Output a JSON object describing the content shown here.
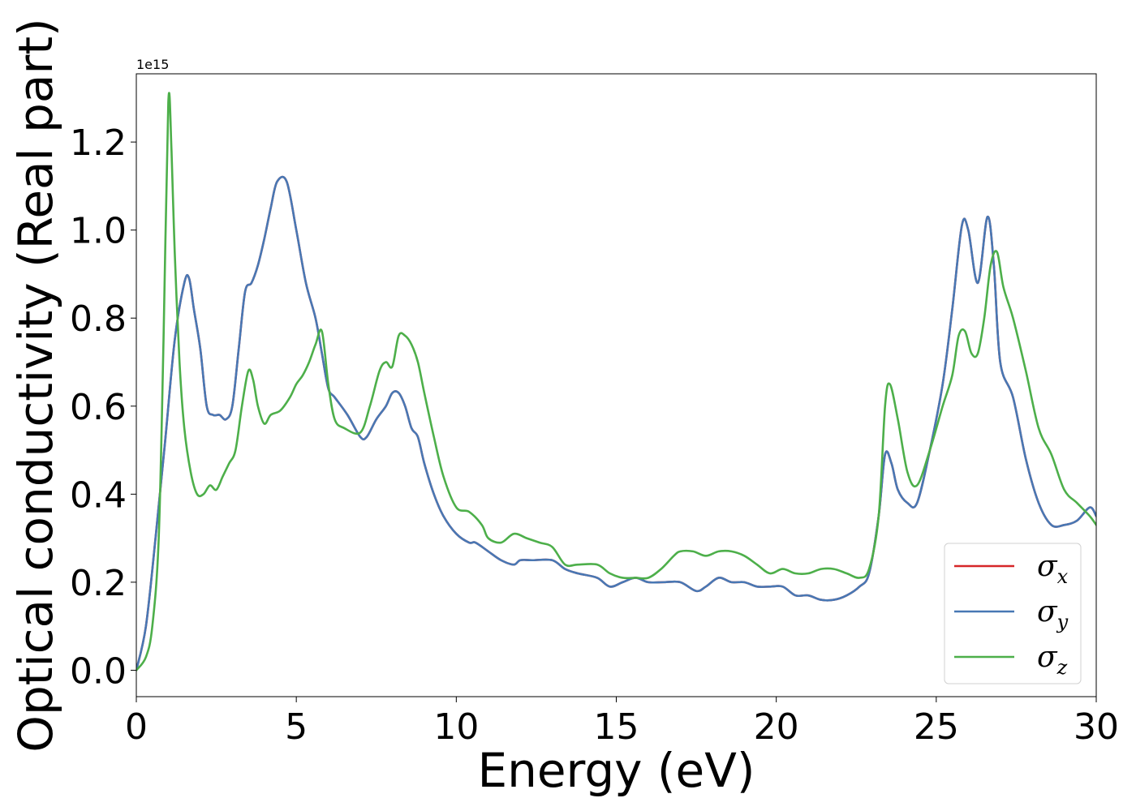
{
  "chart_data": {
    "type": "line",
    "xlabel": "Energy (eV)",
    "ylabel": "Optical conductivity (Real part)",
    "y_offset_text": "1e15",
    "xlim": [
      0,
      30
    ],
    "ylim": [
      -0.06,
      1.355
    ],
    "xticks": [
      0,
      5,
      10,
      15,
      20,
      25,
      30
    ],
    "xtick_labels": [
      "0",
      "5",
      "10",
      "15",
      "20",
      "25",
      "30"
    ],
    "yticks": [
      0.0,
      0.2,
      0.4,
      0.6,
      0.8,
      1.0,
      1.2
    ],
    "ytick_labels": [
      "0.0",
      "0.2",
      "0.4",
      "0.6",
      "0.8",
      "1.0",
      "1.2"
    ],
    "grid": false,
    "legend_position": "bottom-right",
    "series": [
      {
        "name": "σx",
        "symbol": "σ",
        "subscript": "x",
        "color": "#d62728",
        "x": [
          0,
          0.3,
          0.6,
          0.9,
          1.2,
          1.5,
          1.65,
          1.8,
          2.0,
          2.2,
          2.4,
          2.6,
          2.8,
          3.0,
          3.2,
          3.4,
          3.6,
          3.8,
          4.0,
          4.2,
          4.4,
          4.7,
          5.0,
          5.3,
          5.6,
          5.8,
          6.0,
          6.2,
          6.6,
          7.0,
          7.2,
          7.5,
          7.8,
          8.0,
          8.2,
          8.4,
          8.6,
          8.8,
          9.0,
          9.3,
          9.6,
          10.0,
          10.4,
          10.6,
          11.0,
          11.4,
          11.8,
          12.0,
          12.4,
          13.0,
          13.4,
          13.8,
          14.4,
          14.8,
          15.2,
          15.6,
          16.0,
          16.5,
          17.0,
          17.5,
          17.8,
          18.2,
          18.6,
          19.0,
          19.4,
          19.8,
          20.2,
          20.6,
          21.0,
          21.4,
          21.8,
          22.2,
          22.6,
          22.9,
          23.2,
          23.4,
          23.6,
          23.8,
          24.1,
          24.4,
          24.8,
          25.2,
          25.5,
          25.8,
          26.0,
          26.3,
          26.6,
          26.8,
          27.0,
          27.4,
          27.8,
          28.2,
          28.6,
          29.0,
          29.4,
          29.8,
          30.0
        ],
        "y": [
          0.0,
          0.1,
          0.3,
          0.52,
          0.75,
          0.88,
          0.89,
          0.82,
          0.73,
          0.6,
          0.58,
          0.58,
          0.57,
          0.6,
          0.73,
          0.86,
          0.88,
          0.92,
          0.98,
          1.05,
          1.11,
          1.11,
          1.0,
          0.88,
          0.8,
          0.72,
          0.64,
          0.62,
          0.58,
          0.53,
          0.53,
          0.57,
          0.6,
          0.63,
          0.63,
          0.6,
          0.55,
          0.53,
          0.47,
          0.4,
          0.35,
          0.31,
          0.29,
          0.29,
          0.27,
          0.25,
          0.24,
          0.25,
          0.25,
          0.25,
          0.23,
          0.22,
          0.21,
          0.19,
          0.2,
          0.21,
          0.2,
          0.2,
          0.2,
          0.18,
          0.19,
          0.21,
          0.2,
          0.2,
          0.19,
          0.19,
          0.19,
          0.17,
          0.17,
          0.16,
          0.16,
          0.17,
          0.19,
          0.22,
          0.35,
          0.49,
          0.47,
          0.41,
          0.38,
          0.38,
          0.5,
          0.65,
          0.82,
          1.01,
          1.0,
          0.88,
          1.03,
          0.92,
          0.7,
          0.62,
          0.48,
          0.38,
          0.33,
          0.33,
          0.34,
          0.37,
          0.35
        ]
      },
      {
        "name": "σy",
        "symbol": "σ",
        "subscript": "y",
        "color": "#4878b4",
        "x": [
          0,
          0.3,
          0.6,
          0.9,
          1.2,
          1.5,
          1.65,
          1.8,
          2.0,
          2.2,
          2.4,
          2.6,
          2.8,
          3.0,
          3.2,
          3.4,
          3.6,
          3.8,
          4.0,
          4.2,
          4.4,
          4.7,
          5.0,
          5.3,
          5.6,
          5.8,
          6.0,
          6.2,
          6.6,
          7.0,
          7.2,
          7.5,
          7.8,
          8.0,
          8.2,
          8.4,
          8.6,
          8.8,
          9.0,
          9.3,
          9.6,
          10.0,
          10.4,
          10.6,
          11.0,
          11.4,
          11.8,
          12.0,
          12.4,
          13.0,
          13.4,
          13.8,
          14.4,
          14.8,
          15.2,
          15.6,
          16.0,
          16.5,
          17.0,
          17.5,
          17.8,
          18.2,
          18.6,
          19.0,
          19.4,
          19.8,
          20.2,
          20.6,
          21.0,
          21.4,
          21.8,
          22.2,
          22.6,
          22.9,
          23.2,
          23.4,
          23.6,
          23.8,
          24.1,
          24.4,
          24.8,
          25.2,
          25.5,
          25.8,
          26.0,
          26.3,
          26.6,
          26.8,
          27.0,
          27.4,
          27.8,
          28.2,
          28.6,
          29.0,
          29.4,
          29.8,
          30.0
        ],
        "y": [
          0.0,
          0.1,
          0.3,
          0.52,
          0.75,
          0.88,
          0.89,
          0.82,
          0.73,
          0.6,
          0.58,
          0.58,
          0.57,
          0.6,
          0.73,
          0.86,
          0.88,
          0.92,
          0.98,
          1.05,
          1.11,
          1.11,
          1.0,
          0.88,
          0.8,
          0.72,
          0.64,
          0.62,
          0.58,
          0.53,
          0.53,
          0.57,
          0.6,
          0.63,
          0.63,
          0.6,
          0.55,
          0.53,
          0.47,
          0.4,
          0.35,
          0.31,
          0.29,
          0.29,
          0.27,
          0.25,
          0.24,
          0.25,
          0.25,
          0.25,
          0.23,
          0.22,
          0.21,
          0.19,
          0.2,
          0.21,
          0.2,
          0.2,
          0.2,
          0.18,
          0.19,
          0.21,
          0.2,
          0.2,
          0.19,
          0.19,
          0.19,
          0.17,
          0.17,
          0.16,
          0.16,
          0.17,
          0.19,
          0.22,
          0.35,
          0.49,
          0.47,
          0.41,
          0.38,
          0.38,
          0.5,
          0.65,
          0.82,
          1.01,
          1.0,
          0.88,
          1.03,
          0.92,
          0.7,
          0.62,
          0.48,
          0.38,
          0.33,
          0.33,
          0.34,
          0.37,
          0.35
        ]
      },
      {
        "name": "σz",
        "symbol": "σ",
        "subscript": "z",
        "color": "#4daf4a",
        "x": [
          0,
          0.3,
          0.5,
          0.7,
          0.85,
          1.0,
          1.1,
          1.2,
          1.35,
          1.5,
          1.7,
          1.9,
          2.1,
          2.3,
          2.5,
          2.7,
          2.9,
          3.1,
          3.3,
          3.5,
          3.65,
          3.8,
          4.0,
          4.2,
          4.5,
          4.8,
          5.0,
          5.2,
          5.4,
          5.6,
          5.8,
          6.0,
          6.2,
          6.5,
          7.0,
          7.3,
          7.6,
          7.8,
          8.0,
          8.2,
          8.4,
          8.6,
          8.8,
          9.0,
          9.3,
          9.6,
          10.0,
          10.4,
          10.8,
          11.0,
          11.4,
          11.8,
          12.2,
          12.6,
          13.0,
          13.4,
          13.8,
          14.4,
          14.8,
          15.2,
          15.6,
          16.0,
          16.4,
          16.8,
          17.0,
          17.4,
          17.8,
          18.2,
          18.6,
          19.0,
          19.4,
          19.8,
          20.2,
          20.6,
          21.0,
          21.4,
          21.8,
          22.2,
          22.6,
          22.9,
          23.2,
          23.4,
          23.55,
          23.8,
          24.1,
          24.4,
          24.8,
          25.2,
          25.5,
          25.7,
          25.9,
          26.1,
          26.3,
          26.5,
          26.7,
          26.9,
          27.1,
          27.4,
          27.8,
          28.2,
          28.6,
          29.0,
          29.4,
          29.8,
          30.0
        ],
        "y": [
          0.0,
          0.03,
          0.1,
          0.3,
          0.75,
          1.29,
          1.18,
          0.95,
          0.7,
          0.55,
          0.45,
          0.4,
          0.4,
          0.42,
          0.41,
          0.44,
          0.47,
          0.5,
          0.6,
          0.68,
          0.66,
          0.6,
          0.56,
          0.58,
          0.59,
          0.62,
          0.65,
          0.67,
          0.7,
          0.74,
          0.77,
          0.65,
          0.57,
          0.55,
          0.54,
          0.6,
          0.68,
          0.7,
          0.69,
          0.76,
          0.76,
          0.74,
          0.7,
          0.63,
          0.53,
          0.44,
          0.37,
          0.36,
          0.33,
          0.3,
          0.29,
          0.31,
          0.3,
          0.29,
          0.28,
          0.24,
          0.24,
          0.24,
          0.22,
          0.21,
          0.21,
          0.21,
          0.23,
          0.26,
          0.27,
          0.27,
          0.26,
          0.27,
          0.27,
          0.26,
          0.24,
          0.22,
          0.23,
          0.22,
          0.22,
          0.23,
          0.23,
          0.22,
          0.21,
          0.23,
          0.35,
          0.6,
          0.65,
          0.57,
          0.45,
          0.42,
          0.5,
          0.6,
          0.67,
          0.76,
          0.77,
          0.72,
          0.72,
          0.8,
          0.92,
          0.95,
          0.87,
          0.8,
          0.68,
          0.55,
          0.49,
          0.41,
          0.38,
          0.35,
          0.33
        ]
      }
    ]
  }
}
